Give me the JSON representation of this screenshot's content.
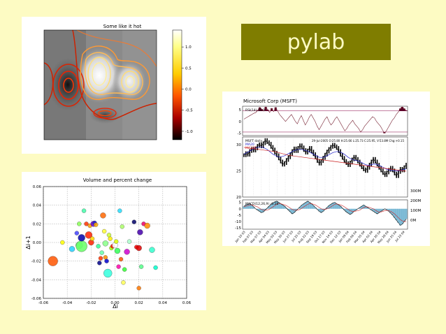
{
  "slide": {
    "title": "pylab",
    "background": "#fdfbc3",
    "title_box_color": "#7f7d00"
  },
  "chart_data": [
    {
      "type": "heatmap",
      "title": "Some like it hot",
      "colorbar": {
        "ticks": [
          "1.0",
          "0.5",
          "0.0",
          "-0.5",
          "-1.0"
        ],
        "tick_values": [
          1.0,
          0.5,
          0.0,
          -0.5,
          -1.0
        ],
        "range": [
          -1.2,
          1.4
        ],
        "colormap": "hot"
      }
    },
    {
      "type": "scatter",
      "title": "Volume and percent change",
      "xlabel": "Δi",
      "ylabel": "Δi+1",
      "xlim": [
        -0.06,
        0.06
      ],
      "ylim": [
        -0.06,
        0.06
      ],
      "xticks": [
        "-0.06",
        "-0.04",
        "-0.02",
        "0.00",
        "0.02",
        "0.04",
        "0.06"
      ],
      "yticks": [
        "0.06",
        "0.04",
        "0.02",
        "0.00",
        "-0.02",
        "-0.04",
        "-0.06"
      ],
      "grid": true,
      "points": [
        {
          "x": -0.052,
          "y": -0.02,
          "r": 7,
          "c": "#ff5500"
        },
        {
          "x": -0.044,
          "y": 0.0,
          "r": 3,
          "c": "#ffff00"
        },
        {
          "x": -0.036,
          "y": -0.007,
          "r": 4,
          "c": "#22d0ff"
        },
        {
          "x": -0.03,
          "y": -0.003,
          "r": 5,
          "c": "#7fff7f"
        },
        {
          "x": -0.028,
          "y": -0.004,
          "r": 8,
          "c": "#66ff66"
        },
        {
          "x": -0.032,
          "y": 0.01,
          "r": 3,
          "c": "#4444ff"
        },
        {
          "x": -0.03,
          "y": 0.02,
          "r": 3,
          "c": "#88ff55"
        },
        {
          "x": -0.028,
          "y": 0.005,
          "r": 5,
          "c": "#0000aa"
        },
        {
          "x": -0.026,
          "y": 0.034,
          "r": 3,
          "c": "#44ffaa"
        },
        {
          "x": -0.024,
          "y": 0.02,
          "r": 3,
          "c": "#ff3300"
        },
        {
          "x": -0.022,
          "y": 0.008,
          "r": 5,
          "c": "#ff2200"
        },
        {
          "x": -0.021,
          "y": 0.018,
          "r": 3,
          "c": "#ff9900"
        },
        {
          "x": -0.02,
          "y": 0.0,
          "r": 4,
          "c": "#ff2200"
        },
        {
          "x": -0.019,
          "y": 0.004,
          "r": 3,
          "c": "#ffd700"
        },
        {
          "x": -0.018,
          "y": 0.02,
          "r": 4,
          "c": "#6600cc"
        },
        {
          "x": -0.017,
          "y": 0.021,
          "r": 3,
          "c": "#2222cc"
        },
        {
          "x": -0.016,
          "y": 0.019,
          "r": 3,
          "c": "#ffaa00"
        },
        {
          "x": -0.014,
          "y": -0.004,
          "r": 3,
          "c": "#33ff99"
        },
        {
          "x": -0.013,
          "y": -0.022,
          "r": 3,
          "c": "#000088"
        },
        {
          "x": -0.012,
          "y": -0.017,
          "r": 3,
          "c": "#ff3300"
        },
        {
          "x": -0.011,
          "y": -0.011,
          "r": 3,
          "c": "#66ffaa"
        },
        {
          "x": -0.01,
          "y": 0.029,
          "r": 4,
          "c": "#ff6600"
        },
        {
          "x": -0.009,
          "y": 0.012,
          "r": 3,
          "c": "#ffff33"
        },
        {
          "x": -0.008,
          "y": -0.001,
          "r": 4,
          "c": "#88ff88"
        },
        {
          "x": -0.008,
          "y": -0.016,
          "r": 3,
          "c": "#ff8800"
        },
        {
          "x": -0.007,
          "y": -0.02,
          "r": 3,
          "c": "#0000cc"
        },
        {
          "x": -0.006,
          "y": -0.033,
          "r": 6,
          "c": "#33ffdd"
        },
        {
          "x": -0.005,
          "y": 0.008,
          "r": 3,
          "c": "#ccff33"
        },
        {
          "x": -0.004,
          "y": 0.004,
          "r": 3,
          "c": "#ffee00"
        },
        {
          "x": -0.003,
          "y": -0.006,
          "r": 3,
          "c": "#aaff00"
        },
        {
          "x": -0.002,
          "y": -0.004,
          "r": 3,
          "c": "#ff1100"
        },
        {
          "x": 0.0,
          "y": -0.003,
          "r": 4,
          "c": "#ffffff"
        },
        {
          "x": 0.001,
          "y": 0.001,
          "r": 3,
          "c": "#ddff00"
        },
        {
          "x": 0.002,
          "y": -0.009,
          "r": 4,
          "c": "#33ff55"
        },
        {
          "x": 0.003,
          "y": -0.026,
          "r": 3,
          "c": "#ff00aa"
        },
        {
          "x": 0.004,
          "y": 0.034,
          "r": 3,
          "c": "#22ddff"
        },
        {
          "x": 0.005,
          "y": -0.018,
          "r": 3,
          "c": "#ff5500"
        },
        {
          "x": 0.006,
          "y": 0.017,
          "r": 3,
          "c": "#aaff66"
        },
        {
          "x": 0.007,
          "y": -0.043,
          "r": 3,
          "c": "#ffff55"
        },
        {
          "x": 0.008,
          "y": -0.029,
          "r": 3,
          "c": "#33ff33"
        },
        {
          "x": 0.01,
          "y": -0.01,
          "r": 4,
          "c": "#cc00cc"
        },
        {
          "x": 0.012,
          "y": 0.001,
          "r": 3,
          "c": "#aaffcc"
        },
        {
          "x": 0.016,
          "y": 0.022,
          "r": 3,
          "c": "#000066"
        },
        {
          "x": 0.018,
          "y": -0.005,
          "r": 3,
          "c": "#ff0000"
        },
        {
          "x": 0.02,
          "y": -0.006,
          "r": 4,
          "c": "#dd0000"
        },
        {
          "x": 0.021,
          "y": 0.011,
          "r": 4,
          "c": "#4400aa"
        },
        {
          "x": 0.022,
          "y": -0.026,
          "r": 3,
          "c": "#55ff88"
        },
        {
          "x": 0.024,
          "y": 0.02,
          "r": 3,
          "c": "#ee0066"
        },
        {
          "x": 0.027,
          "y": 0.018,
          "r": 4,
          "c": "#ff8800"
        },
        {
          "x": 0.02,
          "y": -0.049,
          "r": 3,
          "c": "#ff7700"
        },
        {
          "x": 0.031,
          "y": -0.008,
          "r": 4,
          "c": "#33ffcc"
        },
        {
          "x": 0.034,
          "y": -0.027,
          "r": 3,
          "c": "#00ffcc"
        }
      ]
    },
    {
      "type": "line",
      "title": "Microsoft Corp (MSFT)",
      "panels": [
        {
          "name": "RSI",
          "legend": [
            "RSI(14) 51.0"
          ],
          "yticks": [
            "5",
            "0",
            "-5"
          ],
          "tick_values": [
            5,
            0,
            -5
          ],
          "ylim": [
            -6,
            6.5
          ],
          "thresholds": [
            4.5,
            -4.5
          ],
          "values": [
            1,
            1.5,
            2,
            2.5,
            3,
            3.5,
            3.8,
            4.8,
            6,
            5.2,
            4.4,
            6.2,
            5,
            3.8,
            5.6,
            4.2,
            6,
            4.5,
            3,
            2,
            1,
            0,
            1,
            2,
            3,
            1.5,
            0,
            -1,
            1,
            2.5,
            0.5,
            -1.5,
            0,
            1.8,
            3,
            1.5,
            0,
            -2,
            -3.5,
            -2,
            -0.5,
            1,
            2,
            0,
            -1.5,
            -0.5,
            1,
            2,
            0.5,
            -1,
            -2.5,
            -4,
            -3,
            -1.5,
            -0.5,
            0.5,
            -1,
            -2,
            -3,
            -4.5,
            -3.5,
            -2,
            -1,
            0,
            1,
            2,
            1.5,
            0,
            -1,
            -2,
            -3.5,
            -5,
            -4,
            -2.5,
            -1,
            0.5,
            1.5,
            3,
            4,
            5.5,
            6.2,
            5.5,
            4.7
          ]
        },
        {
          "name": "Price",
          "legend": [
            "MSFT daily",
            "MA20",
            "MA200"
          ],
          "info": "29-Jul-2005 O:25.80 H:25.66 L:25.73 C:25.95, V:53.8M Chg:+0.15",
          "yticks": [
            "30",
            "25",
            "20"
          ],
          "tick_values": [
            30,
            25,
            20
          ],
          "ylim": [
            20,
            31.5
          ],
          "volume_ticks": [
            "300M",
            "200M",
            "100M",
            "0M"
          ],
          "close": [
            28,
            28.4,
            28.1,
            28.8,
            29.2,
            28.9,
            29.3,
            29.8,
            30.1,
            29.7,
            30.3,
            30.9,
            30.5,
            30.2,
            29.6,
            29.1,
            28.5,
            28,
            27.4,
            26.8,
            26.2,
            26.5,
            27.1,
            27.6,
            28.2,
            28.8,
            29.3,
            28.8,
            29.4,
            29.9,
            29.5,
            29,
            28.5,
            28.9,
            29.4,
            28.7,
            28.2,
            27.6,
            26.9,
            26.4,
            26.9,
            27.5,
            28.1,
            28.7,
            29.2,
            29.6,
            30,
            29.7,
            29.4,
            28.8,
            28.1,
            27.5,
            26.9,
            26.5,
            26.1,
            26.6,
            27.2,
            27.7,
            27.3,
            26.8,
            26.2,
            25.7,
            25.3,
            25,
            25.6,
            26.2,
            26.8,
            27.3,
            26.8,
            26.2,
            25.6,
            25.1,
            24.6,
            24.2,
            24.7,
            25.2,
            25.6,
            25.1,
            24.5,
            24,
            24.8,
            25.4,
            25.1,
            25.7,
            26.2
          ],
          "ma20": [
            28.2,
            28.4,
            28.6,
            28.8,
            29,
            29.2,
            29.4,
            29.5,
            29.6,
            29.6,
            29.5,
            29.3,
            29.1,
            28.8,
            28.5,
            28.2,
            28,
            27.8,
            27.7,
            27.7,
            27.8,
            27.9,
            28.1,
            28.3,
            28.5,
            28.7,
            28.9,
            29,
            29.1,
            29.1,
            29.1,
            29,
            28.9,
            28.8,
            28.6,
            28.4,
            28.2,
            28,
            27.8,
            27.6,
            27.6,
            27.6,
            27.7,
            27.9,
            28.1,
            28.3,
            28.5,
            28.6,
            28.7,
            28.7,
            28.6,
            28.4,
            28.2,
            27.9,
            27.6,
            27.4,
            27.2,
            27.1,
            27,
            26.9,
            26.8,
            26.6,
            26.4,
            26.2,
            26.1,
            26.1,
            26.2,
            26.3,
            26.3,
            26.2,
            26.1,
            25.9,
            25.7,
            25.5,
            25.3,
            25.2,
            25.1,
            25.1,
            25,
            25,
            25,
            25.1,
            25.2,
            25.3,
            25.4
          ],
          "ma200": [
            29.5,
            29.45,
            29.4,
            29.35,
            29.3,
            29.25,
            29.2,
            29.15,
            29.1,
            29.05,
            29,
            28.95,
            28.9,
            28.85,
            28.8,
            28.75,
            28.7,
            28.6,
            28.5,
            28.4,
            28.3,
            28.2,
            28.1,
            28,
            27.95,
            27.9,
            27.85,
            27.8,
            27.75,
            27.7,
            27.65,
            27.6,
            27.55,
            27.5,
            27.45,
            27.4,
            27.35,
            27.3,
            27.25,
            27.2,
            27.15,
            27.1,
            27.05,
            27,
            26.95,
            26.9,
            26.85,
            26.8,
            26.75,
            26.7,
            26.65,
            26.6,
            26.55,
            26.5,
            26.45,
            26.4,
            26.35,
            26.3,
            26.25,
            26.2,
            26.15,
            26.1,
            26.05,
            26,
            25.95,
            25.9,
            25.85,
            25.8,
            25.75,
            25.7,
            25.65,
            25.6,
            25.55,
            25.5,
            25.45,
            25.4,
            25.35,
            25.3,
            25.25,
            25.2,
            25.15,
            25.1,
            25.05,
            25,
            24.95
          ]
        },
        {
          "name": "MACD",
          "legend": [
            "MACD(12,26,9) -0.28"
          ],
          "yticks": [
            "5",
            "0",
            "-5",
            "-10",
            "-15"
          ],
          "tick_values": [
            5,
            0,
            -5,
            -10,
            -15
          ],
          "ylim": [
            -16,
            7
          ],
          "values": [
            2,
            3,
            3.5,
            4,
            3,
            1.5,
            0,
            -1,
            -2,
            -3,
            -2.5,
            -1,
            0.5,
            2,
            3.5,
            4.5,
            5.5,
            6,
            5,
            4,
            3,
            2,
            0.5,
            -1,
            -2.5,
            -4,
            -3,
            -1.5,
            0,
            1.5,
            3,
            4,
            5,
            6,
            5,
            4,
            2.5,
            1,
            -0.5,
            -2,
            -3,
            -2,
            -0.5,
            1,
            2.5,
            3.5,
            4.5,
            5,
            4,
            3,
            2,
            0.5,
            -1,
            -2.5,
            -3.5,
            -4.5,
            -3.5,
            -2,
            -1,
            0,
            1,
            2,
            3,
            2,
            1,
            0,
            -1,
            -2,
            -3,
            -4,
            -3,
            -2,
            -1,
            0,
            -1,
            -2,
            -3.5,
            -5,
            -7,
            -9,
            -11,
            -13,
            -12,
            -10,
            -8
          ],
          "signal": [
            1.5,
            2,
            2.5,
            3,
            3,
            2.5,
            2,
            1.5,
            0.5,
            -0.5,
            -1,
            -1.2,
            -1,
            -0.5,
            0.5,
            1.5,
            2.5,
            3.5,
            4,
            4,
            3.5,
            3,
            2.5,
            1.5,
            0.5,
            -0.5,
            -1,
            -1.2,
            -1,
            -0.5,
            0.5,
            1.5,
            2.5,
            3.5,
            4,
            4,
            3.5,
            3,
            2,
            1,
            0,
            -0.5,
            -0.5,
            0,
            0.5,
            1.5,
            2.5,
            3.5,
            3.8,
            3.5,
            3,
            2.5,
            1.5,
            0.5,
            -0.5,
            -1.5,
            -2,
            -2,
            -1.8,
            -1.5,
            -1,
            0,
            1,
            1.5,
            1.5,
            1,
            0.5,
            0,
            -1,
            -2,
            -2.5,
            -2.5,
            -2,
            -1.5,
            -1.2,
            -1.5,
            -2,
            -3,
            -4,
            -5.5,
            -7,
            -8.5,
            -9.5,
            -10,
            -10
          ]
        }
      ],
      "dates": [
        "Jan 10 03",
        "Feb 07 03",
        "Mar 07 03",
        "Apr 04 03",
        "May 02 03",
        "May 30 03",
        "Jun 27 03",
        "Jul 25 03",
        "Aug 22 03",
        "Sep 19 03",
        "Oct 17 03",
        "Nov 14 03",
        "Dec 12 03",
        "Jan 09 04",
        "Feb 06 04",
        "Mar 05 04",
        "Apr 02 04",
        "Apr 30 04",
        "May 28 04",
        "Jun 25 04",
        "Jul 23 04"
      ]
    }
  ]
}
